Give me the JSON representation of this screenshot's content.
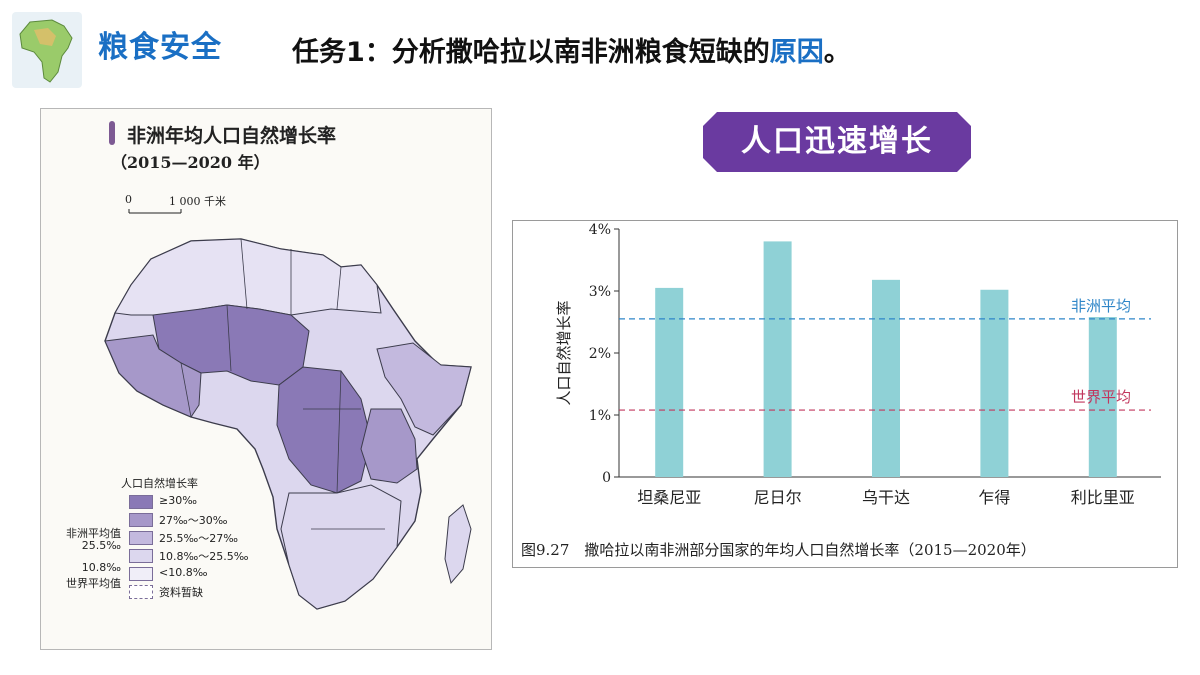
{
  "header": {
    "section_title": "粮食安全",
    "task_prefix": "任务1：分析撒哈拉以南非洲粮食短缺的",
    "task_highlight": "原因",
    "task_suffix": "。"
  },
  "map": {
    "title": "非洲年均人口自然增长率",
    "subtitle": "（2015—2020 年）",
    "scale_zero": "0",
    "scale_label": "1 000 千米",
    "legend": {
      "title": "人口自然增长率",
      "items": [
        {
          "label": "≥30‰",
          "color": "#8a79b6"
        },
        {
          "label": "27‰～30‰",
          "color": "#a698c9"
        },
        {
          "label": "25.5‰～27‰",
          "color": "#c3b9de"
        },
        {
          "label": "10.8‰～25.5‰",
          "color": "#dcd7ee"
        },
        {
          "label": "<10.8‰",
          "color": "#f0eef8"
        },
        {
          "label": "资料暂缺",
          "color": "#ffffff"
        }
      ],
      "africa_avg_label": "非洲平均值",
      "africa_avg_value": "25.5‰",
      "world_avg_value": "10.8‰",
      "world_avg_label": "世界平均值"
    }
  },
  "badge": {
    "text": "人口迅速增长"
  },
  "chart_data": {
    "type": "bar",
    "categories": [
      "坦桑尼亚",
      "尼日尔",
      "乌干达",
      "乍得",
      "利比里亚"
    ],
    "values": [
      3.05,
      3.8,
      3.18,
      3.02,
      2.58
    ],
    "ylabel": "人口自然增长率",
    "ylim": [
      0,
      4
    ],
    "yticks": [
      "0",
      "1%",
      "2%",
      "3%",
      "4%"
    ],
    "bar_color": "#8fd1d6",
    "reference_lines": [
      {
        "name": "非洲平均",
        "value": 2.55,
        "color": "#2f86c8"
      },
      {
        "name": "世界平均",
        "value": 1.08,
        "color": "#c2375e"
      }
    ],
    "caption": "图9.27　撒哈拉以南非洲部分国家的年均人口自然增长率（2015—2020年）",
    "grid": false
  }
}
